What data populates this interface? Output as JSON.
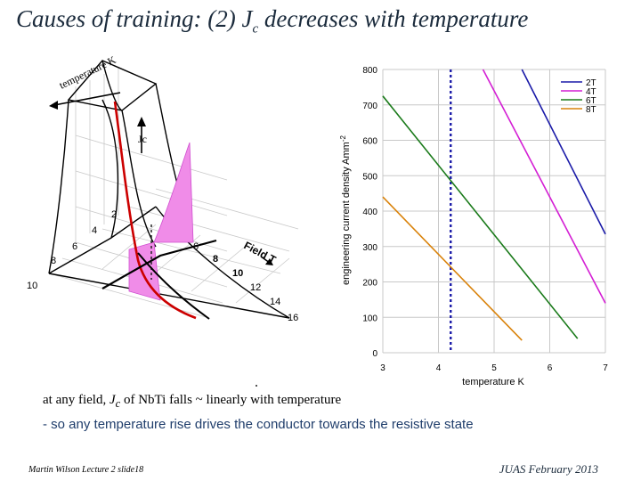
{
  "slide": {
    "title_main": "Causes of training: (2) J",
    "title_sub": "c",
    "title_rest": " decreases with temperature",
    "caption_prefix": "at any field, ",
    "caption_j": "J",
    "caption_c": "c",
    "caption_rest": " of NbTi falls ~ linearly with temperature",
    "bullet": "- so any temperature rise drives the conductor towards the resistive state",
    "footer_left": "Martin Wilson Lecture 2 slide18",
    "footer_right": "JUAS February 2013"
  },
  "surface_figure": {
    "temperature_label": "temperature K",
    "jc_label": "Jc",
    "field_label": "Field T",
    "temp_ticks": [
      "2",
      "4",
      "6",
      "8",
      "10"
    ],
    "field_ticks": [
      "6",
      "8",
      "10",
      "12",
      "14",
      "16"
    ],
    "colors": {
      "surface_line": "#000000",
      "highlight_fill": "#f08ce8",
      "critical_line": "#cc0000"
    }
  },
  "chart_data": {
    "type": "line",
    "xlabel": "temperature K",
    "ylabel": "engineering current density Amm",
    "ylabel_sup": "-2",
    "xlim": [
      3,
      7
    ],
    "ylim": [
      0,
      800
    ],
    "xticks": [
      3,
      4,
      5,
      6,
      7
    ],
    "yticks": [
      0,
      100,
      200,
      300,
      400,
      500,
      600,
      700,
      800
    ],
    "grid": true,
    "legend_position": "top-right",
    "marker_line": {
      "x": 4.22,
      "style": "dotted",
      "color": "#1a1aa8"
    },
    "series": [
      {
        "name": "2T",
        "color": "#1a1aa8",
        "x": [
          5.5,
          7.0
        ],
        "y": [
          800,
          335
        ]
      },
      {
        "name": "4T",
        "color": "#d41fd4",
        "x": [
          4.8,
          7.0
        ],
        "y": [
          800,
          140
        ]
      },
      {
        "name": "6T",
        "color": "#1a7a1a",
        "x": [
          3.0,
          6.5
        ],
        "y": [
          725,
          40
        ]
      },
      {
        "name": "8T",
        "color": "#d9820a",
        "x": [
          3.0,
          5.5
        ],
        "y": [
          440,
          35
        ]
      }
    ]
  }
}
